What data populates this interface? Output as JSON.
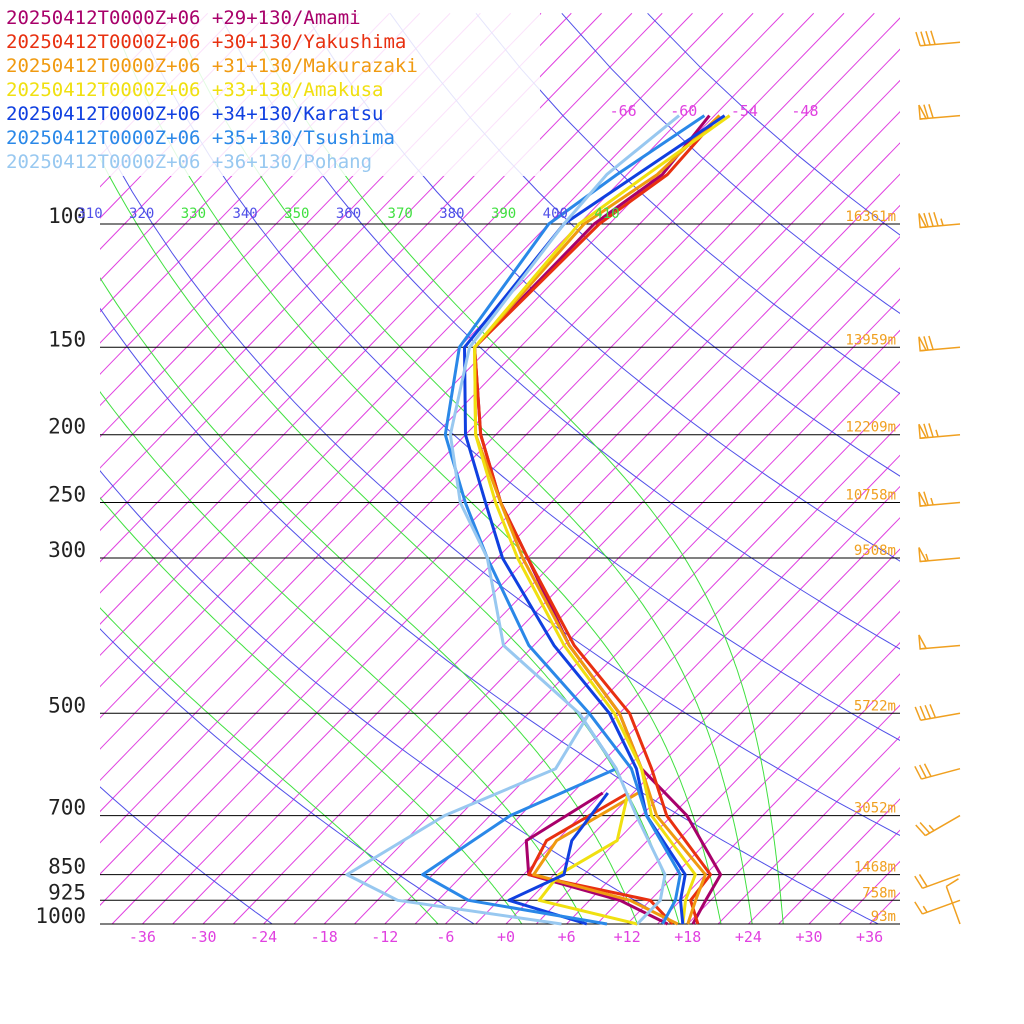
{
  "chart_data": {
    "type": "line",
    "chart_kind": "skew-t log-p sounding",
    "title": "",
    "y_axis": "pressure (hPa), log scale",
    "x_axis": "temperature (°C), skewed",
    "pressure_levels": [
      {
        "p": 100,
        "label": "100",
        "height": "16361m"
      },
      {
        "p": 150,
        "label": "150",
        "height": "13959m"
      },
      {
        "p": 200,
        "label": "200",
        "height": "12209m"
      },
      {
        "p": 250,
        "label": "250",
        "height": "10758m"
      },
      {
        "p": 300,
        "label": "300",
        "height": "9508m"
      },
      {
        "p": 500,
        "label": "500",
        "height": "5722m"
      },
      {
        "p": 700,
        "label": "700",
        "height": "3052m"
      },
      {
        "p": 850,
        "label": "850",
        "height": "1468m"
      },
      {
        "p": 925,
        "label": "925",
        "height": "758m"
      },
      {
        "p": 1000,
        "label": "1000",
        "height": "93m"
      }
    ],
    "temperature_ticks": [
      {
        "t": -36,
        "label": "-36"
      },
      {
        "t": -30,
        "label": "-30"
      },
      {
        "t": -24,
        "label": "-24"
      },
      {
        "t": -18,
        "label": "-18"
      },
      {
        "t": -12,
        "label": "-12"
      },
      {
        "t": -6,
        "label": "-6"
      },
      {
        "t": 0,
        "label": "+0"
      },
      {
        "t": 6,
        "label": "+6"
      },
      {
        "t": 12,
        "label": "+12"
      },
      {
        "t": 18,
        "label": "+18"
      },
      {
        "t": 24,
        "label": "+24"
      },
      {
        "t": 30,
        "label": "+30"
      },
      {
        "t": 36,
        "label": "+36"
      }
    ],
    "upper_temperature_labels": [
      {
        "t": -66,
        "label": "-66"
      },
      {
        "t": -60,
        "label": "-60"
      },
      {
        "t": -54,
        "label": "-54"
      },
      {
        "t": -48,
        "label": "-48"
      }
    ],
    "theta_labels": [
      {
        "theta": 310,
        "label": "310",
        "kind": "dry"
      },
      {
        "theta": 320,
        "label": "320",
        "kind": "dry"
      },
      {
        "theta": 330,
        "label": "330",
        "kind": "moist"
      },
      {
        "theta": 340,
        "label": "340",
        "kind": "dry"
      },
      {
        "theta": 350,
        "label": "350",
        "kind": "moist"
      },
      {
        "theta": 360,
        "label": "360",
        "kind": "dry"
      },
      {
        "theta": 370,
        "label": "370",
        "kind": "moist"
      },
      {
        "theta": 380,
        "label": "380",
        "kind": "dry"
      },
      {
        "theta": 390,
        "label": "390",
        "kind": "moist"
      },
      {
        "theta": 400,
        "label": "400",
        "kind": "dry"
      },
      {
        "theta": 410,
        "label": "410",
        "kind": "moist"
      }
    ],
    "series": [
      {
        "name": "20250412T0000Z+06 +29+130/Amami",
        "color": "#a8006a",
        "temperature": [
          [
            1000,
            18.5
          ],
          [
            925,
            17.5
          ],
          [
            850,
            16.5
          ],
          [
            700,
            7.5
          ],
          [
            600,
            -1.5
          ],
          [
            500,
            -9.0
          ],
          [
            400,
            -20.5
          ],
          [
            300,
            -33.0
          ],
          [
            250,
            -41.0
          ],
          [
            200,
            -49.5
          ],
          [
            150,
            -58.5
          ],
          [
            100,
            -58.5
          ],
          [
            85,
            -56.5
          ],
          [
            70,
            -57.5
          ]
        ],
        "dewpoint": [
          [
            1000,
            16.0
          ],
          [
            925,
            9.0
          ],
          [
            850,
            -2.5
          ],
          [
            760,
            -6.0
          ],
          [
            650,
            -3.0
          ]
        ]
      },
      {
        "name": "20250412T0000Z+06 +30+130/Yakushima",
        "color": "#e83010",
        "temperature": [
          [
            1000,
            19.0
          ],
          [
            925,
            16.0
          ],
          [
            850,
            15.5
          ],
          [
            700,
            5.5
          ],
          [
            600,
            -0.5
          ],
          [
            500,
            -8.0
          ],
          [
            400,
            -20.0
          ],
          [
            300,
            -33.0
          ],
          [
            250,
            -41.0
          ],
          [
            200,
            -49.5
          ],
          [
            150,
            -58.5
          ],
          [
            100,
            -58.0
          ],
          [
            85,
            -56.0
          ],
          [
            70,
            -56.5
          ]
        ],
        "dewpoint": [
          [
            1000,
            16.5
          ],
          [
            925,
            12.0
          ],
          [
            850,
            -2.5
          ],
          [
            760,
            -4.0
          ],
          [
            650,
            -0.5
          ]
        ]
      },
      {
        "name": "20250412T0000Z+06 +31+130/Makurazaki",
        "color": "#f09a10",
        "temperature": [
          [
            1000,
            18.0
          ],
          [
            925,
            16.5
          ],
          [
            850,
            15.0
          ],
          [
            700,
            4.5
          ],
          [
            600,
            -1.5
          ],
          [
            500,
            -9.0
          ],
          [
            400,
            -20.5
          ],
          [
            300,
            -33.5
          ],
          [
            250,
            -41.0
          ],
          [
            200,
            -50.0
          ],
          [
            150,
            -58.5
          ],
          [
            100,
            -59.5
          ],
          [
            85,
            -57.0
          ],
          [
            70,
            -56.5
          ]
        ],
        "dewpoint": [
          [
            1000,
            17.0
          ],
          [
            925,
            10.0
          ],
          [
            850,
            -2.0
          ],
          [
            760,
            -3.0
          ],
          [
            650,
            0.5
          ]
        ]
      },
      {
        "name": "20250412T0000Z+06 +33+130/Amakusa",
        "color": "#f0e010",
        "temperature": [
          [
            1000,
            17.5
          ],
          [
            925,
            15.5
          ],
          [
            850,
            14.0
          ],
          [
            700,
            4.0
          ],
          [
            600,
            -1.5
          ],
          [
            500,
            -9.5
          ],
          [
            400,
            -21.0
          ],
          [
            300,
            -34.0
          ],
          [
            250,
            -41.5
          ],
          [
            200,
            -50.0
          ],
          [
            150,
            -58.5
          ],
          [
            100,
            -60.0
          ],
          [
            85,
            -58.0
          ],
          [
            70,
            -55.5
          ]
        ],
        "dewpoint": [
          [
            1000,
            13.0
          ],
          [
            925,
            1.0
          ],
          [
            850,
            0.5
          ],
          [
            760,
            3.0
          ],
          [
            650,
            -0.5
          ]
        ]
      },
      {
        "name": "20250412T0000Z+06 +34+130/Karatsu",
        "color": "#1040e0",
        "temperature": [
          [
            1000,
            17.5
          ],
          [
            925,
            15.0
          ],
          [
            850,
            13.0
          ],
          [
            700,
            3.5
          ],
          [
            600,
            -2.0
          ],
          [
            500,
            -10.0
          ],
          [
            400,
            -22.0
          ],
          [
            300,
            -35.5
          ],
          [
            250,
            -42.5
          ],
          [
            200,
            -51.0
          ],
          [
            150,
            -59.5
          ],
          [
            100,
            -61.5
          ],
          [
            85,
            -59.0
          ],
          [
            70,
            -56.0
          ]
        ],
        "dewpoint": [
          [
            1000,
            8.0
          ],
          [
            925,
            -2.0
          ],
          [
            850,
            1.0
          ],
          [
            760,
            -1.5
          ],
          [
            650,
            -2.5
          ]
        ]
      },
      {
        "name": "20250412T0000Z+06 +35+130/Tsushima",
        "color": "#2a88e8",
        "temperature": [
          [
            1000,
            15.5
          ],
          [
            925,
            14.5
          ],
          [
            850,
            12.5
          ],
          [
            700,
            3.5
          ],
          [
            600,
            -2.5
          ],
          [
            500,
            -12.0
          ],
          [
            400,
            -24.5
          ],
          [
            300,
            -37.0
          ],
          [
            250,
            -44.5
          ],
          [
            200,
            -53.0
          ],
          [
            150,
            -60.0
          ],
          [
            100,
            -63.0
          ],
          [
            85,
            -61.0
          ],
          [
            70,
            -58.0
          ]
        ],
        "dewpoint": [
          [
            1000,
            10.0
          ],
          [
            925,
            -6.0
          ],
          [
            850,
            -13.0
          ],
          [
            700,
            -10.0
          ],
          [
            600,
            -4.0
          ],
          [
            500,
            -13.0
          ]
        ]
      },
      {
        "name": "20250412T0000Z+06 +36+130/Pohang",
        "color": "#98c8f0",
        "temperature": [
          [
            1000,
            13.0
          ],
          [
            925,
            13.0
          ],
          [
            850,
            11.0
          ],
          [
            700,
            2.5
          ],
          [
            600,
            -4.0
          ],
          [
            500,
            -13.0
          ],
          [
            400,
            -27.0
          ],
          [
            300,
            -37.0
          ],
          [
            250,
            -45.0
          ],
          [
            200,
            -52.5
          ],
          [
            150,
            -59.0
          ],
          [
            100,
            -61.5
          ],
          [
            85,
            -62.0
          ],
          [
            70,
            -60.5
          ]
        ],
        "dewpoint": [
          [
            1000,
            5.5
          ],
          [
            925,
            -13.0
          ],
          [
            850,
            -20.5
          ],
          [
            700,
            -16.5
          ],
          [
            600,
            -10.0
          ],
          [
            500,
            -12.0
          ]
        ]
      }
    ],
    "wind_barbs": [
      {
        "p": 1000,
        "direction_deg": 340,
        "speed_kt": 10
      },
      {
        "p": 925,
        "direction_deg": 250,
        "speed_kt": 15
      },
      {
        "p": 850,
        "direction_deg": 250,
        "speed_kt": 20
      },
      {
        "p": 700,
        "direction_deg": 240,
        "speed_kt": 25
      },
      {
        "p": 600,
        "direction_deg": 255,
        "speed_kt": 30
      },
      {
        "p": 500,
        "direction_deg": 260,
        "speed_kt": 40
      },
      {
        "p": 400,
        "direction_deg": 265,
        "speed_kt": 50
      },
      {
        "p": 300,
        "direction_deg": 265,
        "speed_kt": 55
      },
      {
        "p": 250,
        "direction_deg": 265,
        "speed_kt": 65
      },
      {
        "p": 200,
        "direction_deg": 265,
        "speed_kt": 75
      },
      {
        "p": 150,
        "direction_deg": 265,
        "speed_kt": 70
      },
      {
        "p": 100,
        "direction_deg": 265,
        "speed_kt": 85
      },
      {
        "p": 70,
        "direction_deg": 265,
        "speed_kt": 70
      },
      {
        "p": 55,
        "direction_deg": 265,
        "speed_kt": 40
      }
    ],
    "colors": {
      "isobar": "#000000",
      "isotherm": "#e040e0",
      "dry_adiabat": "#5050e8",
      "moist_adiabat": "#40e040",
      "height_label": "#f0a020",
      "wind_barb": "#f0a020"
    }
  }
}
